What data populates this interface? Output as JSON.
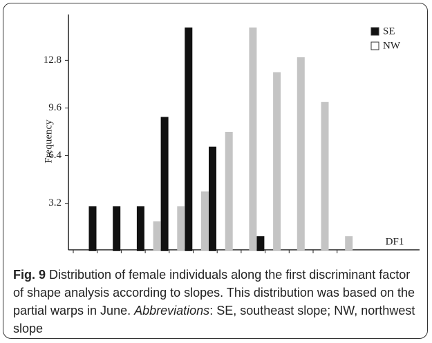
{
  "chart_data": {
    "type": "bar",
    "y_label": "Frequency",
    "x_label": "DF1",
    "categories": [
      null,
      null,
      null,
      null,
      null,
      null,
      null,
      null,
      null,
      null,
      null,
      null
    ],
    "series": [
      {
        "name": "SE",
        "color": "#111111",
        "values": [
          3,
          3,
          3,
          9,
          15,
          7,
          0,
          1,
          0,
          0,
          0,
          0
        ]
      },
      {
        "name": "NW",
        "color": "#c4c4c4",
        "values": [
          0,
          0,
          0,
          2,
          3,
          4,
          8,
          15,
          12,
          13,
          10,
          1
        ]
      }
    ],
    "ylim": [
      0,
      16
    ],
    "yticks": [
      3.2,
      6.4,
      9.6,
      12.8
    ],
    "legend": "top-right",
    "grid": false
  },
  "caption": {
    "label": "Fig. 9",
    "text": "Distribution of female individuals along the first discriminant factor of shape analysis according to slopes. This distribution was based on the partial warps in June.",
    "abbrev_label": "Abbreviations",
    "abbrev_text": ": SE, southeast slope; NW, northwest slope"
  }
}
